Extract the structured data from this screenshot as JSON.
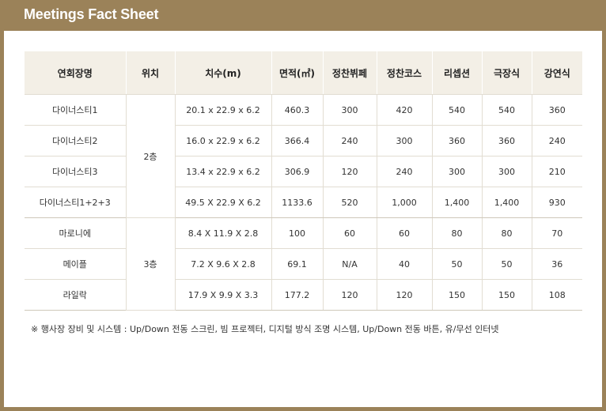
{
  "header": {
    "title": "Meetings Fact Sheet"
  },
  "table": {
    "columns": [
      "연회장명",
      "위치",
      "치수(m)",
      "면적(㎡)",
      "정찬뷔페",
      "정찬코스",
      "리셉션",
      "극장식",
      "강연식"
    ],
    "floors": [
      "2층",
      "3층"
    ],
    "rows": [
      {
        "name": "다이너스티1",
        "dim": "20.1 x 22.9 x 6.2",
        "area": "460.3",
        "buffet": "300",
        "course": "420",
        "reception": "540",
        "theater": "540",
        "lecture": "360"
      },
      {
        "name": "다이너스티2",
        "dim": "16.0 x 22.9 x 6.2",
        "area": "366.4",
        "buffet": "240",
        "course": "300",
        "reception": "360",
        "theater": "360",
        "lecture": "240"
      },
      {
        "name": "다이너스티3",
        "dim": "13.4 x 22.9 x 6.2",
        "area": "306.9",
        "buffet": "120",
        "course": "240",
        "reception": "300",
        "theater": "300",
        "lecture": "210"
      },
      {
        "name": "다이너스티1+2+3",
        "dim": "49.5 X 22.9 X 6.2",
        "area": "1133.6",
        "buffet": "520",
        "course": "1,000",
        "reception": "1,400",
        "theater": "1,400",
        "lecture": "930"
      },
      {
        "name": "마로니에",
        "dim": "8.4 X 11.9 X 2.8",
        "area": "100",
        "buffet": "60",
        "course": "60",
        "reception": "80",
        "theater": "80",
        "lecture": "70"
      },
      {
        "name": "메이플",
        "dim": "7.2 X 9.6 X 2.8",
        "area": "69.1",
        "buffet": "N/A",
        "course": "40",
        "reception": "50",
        "theater": "50",
        "lecture": "36"
      },
      {
        "name": "라일락",
        "dim": "17.9 X 9.9 X 3.3",
        "area": "177.2",
        "buffet": "120",
        "course": "120",
        "reception": "150",
        "theater": "150",
        "lecture": "108"
      }
    ]
  },
  "note": "※ 행사장 장비 및 시스템 : Up/Down 전동 스크린, 빔 프로젝터, 디지털 방식 조명 시스템, Up/Down 전동 바튼, 유/무선 인터넷"
}
